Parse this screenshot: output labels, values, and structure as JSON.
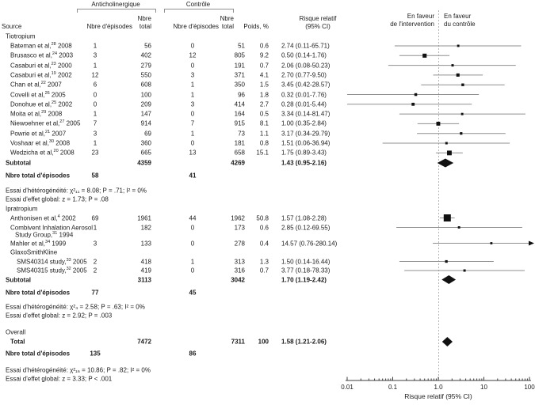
{
  "figure": {
    "source_header": "Source",
    "group_headers": [
      {
        "label": "Anticholinergique"
      },
      {
        "label": "Contrôle"
      }
    ],
    "col_headers": {
      "episodes": "Nbre d'épisodes",
      "total_line1": "Nbre",
      "total_line2": "total",
      "weight": "Poids, %",
      "rr_line1": "Risque relatif",
      "rr_line2": "(95% CI)"
    },
    "favor_left_line1": "En faveur",
    "favor_left_line2": "de l'intervention",
    "favor_right_line1": "En faveur",
    "favor_right_line2": "du contrôle",
    "colors": {
      "marker": "#111111",
      "ci_line": "#8f8f8f",
      "ref_line": "#b3b3b3",
      "axis": "#3c3c3c"
    }
  },
  "chart_data": {
    "type": "forest",
    "effect_measure": "Risque relatif (95% CI)",
    "x_scale": "log",
    "x_range": [
      0.01,
      100
    ],
    "axis": {
      "ticks": [
        "0.01",
        "0.1",
        "1.0",
        "10",
        "100"
      ],
      "tick_values": [
        0.01,
        0.1,
        1,
        10,
        100
      ],
      "title": "Risque relatif (95% CI)",
      "reference_value": 1
    },
    "groups": [
      {
        "name": "Tiotropium",
        "studies": [
          {
            "name": "Bateman et al,",
            "ref": "28",
            "year": "2008",
            "ac_events": 1,
            "ac_total": 56,
            "c_events": 0,
            "c_total": 51,
            "weight": 0.6,
            "rr": 2.74,
            "ci_low": 0.11,
            "ci_high": 65.71,
            "rr_text": "2.74 (0.11-65.71)"
          },
          {
            "name": "Brusasco et al,",
            "ref": "24",
            "year": "2003",
            "ac_events": 3,
            "ac_total": 402,
            "c_events": 12,
            "c_total": 805,
            "weight": 9.2,
            "rr": 0.5,
            "ci_low": 0.14,
            "ci_high": 1.76,
            "rr_text": "0.50 (0.14-1.76)"
          },
          {
            "name": "Casaburi et al,",
            "ref": "23",
            "year": "2000",
            "ac_events": 1,
            "ac_total": 279,
            "c_events": 0,
            "c_total": 191,
            "weight": 0.7,
            "rr": 2.06,
            "ci_low": 0.08,
            "ci_high": 50.23,
            "rr_text": "2.06 (0.08-50.23)"
          },
          {
            "name": "Casaburi et al,",
            "ref": "19",
            "year": "2002",
            "ac_events": 12,
            "ac_total": 550,
            "c_events": 3,
            "c_total": 371,
            "weight": 4.1,
            "rr": 2.7,
            "ci_low": 0.77,
            "ci_high": 9.5,
            "rr_text": "2.70 (0.77-9.50)"
          },
          {
            "name": "Chan et al,",
            "ref": "22",
            "year": "2007",
            "ac_events": 6,
            "ac_total": 608,
            "c_events": 1,
            "c_total": 350,
            "weight": 1.5,
            "rr": 3.45,
            "ci_low": 0.42,
            "ci_high": 28.57,
            "rr_text": "3.45 (0.42-28.57)"
          },
          {
            "name": "Covelli et al,",
            "ref": "26",
            "year": "2005",
            "ac_events": 0,
            "ac_total": 100,
            "c_events": 1,
            "c_total": 96,
            "weight": 1.8,
            "rr": 0.32,
            "ci_low": 0.01,
            "ci_high": 7.76,
            "rr_text": "0.32 (0.01-7.76)"
          },
          {
            "name": "Donohue et al,",
            "ref": "25",
            "year": "2002",
            "ac_events": 0,
            "ac_total": 209,
            "c_events": 3,
            "c_total": 414,
            "weight": 2.7,
            "rr": 0.28,
            "ci_low": 0.01,
            "ci_high": 5.44,
            "rr_text": "0.28 (0.01-5.44)"
          },
          {
            "name": "Moita et al,",
            "ref": "29",
            "year": "2008",
            "ac_events": 1,
            "ac_total": 147,
            "c_events": 0,
            "c_total": 164,
            "weight": 0.5,
            "rr": 3.34,
            "ci_low": 0.14,
            "ci_high": 81.47,
            "rr_text": "3.34 (0.14-81.47)"
          },
          {
            "name": "Niewoehner et al,",
            "ref": "27",
            "year": "2005",
            "ac_events": 7,
            "ac_total": 914,
            "c_events": 7,
            "c_total": 915,
            "weight": 8.1,
            "rr": 1.0,
            "ci_low": 0.35,
            "ci_high": 2.84,
            "rr_text": "1.00 (0.35-2.84)"
          },
          {
            "name": "Powrie et al,",
            "ref": "21",
            "year": "2007",
            "ac_events": 3,
            "ac_total": 69,
            "c_events": 1,
            "c_total": 73,
            "weight": 1.1,
            "rr": 3.17,
            "ci_low": 0.34,
            "ci_high": 29.79,
            "rr_text": "3.17 (0.34-29.79)"
          },
          {
            "name": "Voshaar et al,",
            "ref": "30",
            "year": "2008",
            "ac_events": 1,
            "ac_total": 360,
            "c_events": 0,
            "c_total": 181,
            "weight": 0.8,
            "rr": 1.51,
            "ci_low": 0.06,
            "ci_high": 36.94,
            "rr_text": "1.51 (0.06-36.94)"
          },
          {
            "name": "Wedzicha et al,",
            "ref": "20",
            "year": "2008",
            "ac_events": 23,
            "ac_total": 665,
            "c_events": 13,
            "c_total": 658,
            "weight": 15.1,
            "rr": 1.75,
            "ci_low": 0.89,
            "ci_high": 3.43,
            "rr_text": "1.75 (0.89-3.43)"
          }
        ],
        "subtotal": {
          "label": "Subtotal",
          "ac_total": 4359,
          "c_total": 4269,
          "rr": 1.43,
          "ci_low": 0.95,
          "ci_high": 2.16,
          "rr_text": "1.43 (0.95-2.16)"
        },
        "episodes_row": {
          "label": "Nbre total d'épisodes",
          "ac_events": 58,
          "c_events": 41
        },
        "heterogeneity": "Essai d'hétérogénéité: χ²₁₁ = 8.08; P = .71; I² = 0%",
        "overall_effect": "Essai d'effet global: z = 1.73; P = .08"
      },
      {
        "name": "Ipratropium",
        "studies": [
          {
            "name": "Anthonisen et al,",
            "ref": "4",
            "year": "2002",
            "ac_events": 69,
            "ac_total": 1961,
            "c_events": 44,
            "c_total": 1962,
            "weight": 50.8,
            "rr": 1.57,
            "ci_low": 1.08,
            "ci_high": 2.28,
            "rr_text": "1.57 (1.08-2.28)"
          },
          {
            "name": "Combivent Inhalation Aerosol",
            "name2": "Study Group,",
            "ref": "31",
            "year": "1994",
            "ac_events": 1,
            "ac_total": 182,
            "c_events": 0,
            "c_total": 173,
            "weight": 0.6,
            "rr": 2.85,
            "ci_low": 0.12,
            "ci_high": 69.55,
            "rr_text": "2.85 (0.12-69.55)"
          },
          {
            "name": "Mahler et al,",
            "ref": "34",
            "year": "1999",
            "ac_events": 3,
            "ac_total": 133,
            "c_events": 0,
            "c_total": 278,
            "weight": 0.4,
            "rr": 14.57,
            "ci_low": 0.76,
            "ci_high": 280.14,
            "rr_text": "14.57 (0.76-280.14)"
          },
          {
            "name": "GlaxoSmithKline",
            "label_only": true
          },
          {
            "name": "SMS40314 study,",
            "ref": "33",
            "year": "2005",
            "indent": true,
            "ac_events": 2,
            "ac_total": 418,
            "c_events": 1,
            "c_total": 313,
            "weight": 1.3,
            "rr": 1.5,
            "ci_low": 0.14,
            "ci_high": 16.44,
            "rr_text": "1.50 (0.14-16.44)"
          },
          {
            "name": "SMS40315 study,",
            "ref": "32",
            "year": "2005",
            "indent": true,
            "ac_events": 2,
            "ac_total": 419,
            "c_events": 0,
            "c_total": 316,
            "weight": 0.7,
            "rr": 3.77,
            "ci_low": 0.18,
            "ci_high": 78.33,
            "rr_text": "3.77 (0.18-78.33)"
          }
        ],
        "subtotal": {
          "label": "Subtotal",
          "ac_total": 3113,
          "c_total": 3042,
          "rr": 1.7,
          "ci_low": 1.19,
          "ci_high": 2.42,
          "rr_text": "1.70 (1.19-2.42)"
        },
        "episodes_row": {
          "label": "Nbre total d'épisodes",
          "ac_events": 77,
          "c_events": 45
        },
        "heterogeneity": "Essai d'hétérogénéité: χ²₄ = 2.58; P = .63; I² = 0%",
        "overall_effect": "Essai d'effet global: z = 2.92; P = .003"
      }
    ],
    "overall": {
      "name": "Overall",
      "total_label": "Total",
      "ac_total": 7472,
      "c_total": 7311,
      "weight": 100,
      "rr": 1.58,
      "ci_low": 1.21,
      "ci_high": 2.06,
      "rr_text": "1.58 (1.21-2.06)",
      "episodes_row": {
        "label": "Nbre total d'épisodes",
        "ac_events": 135,
        "c_events": 86
      },
      "heterogeneity": "Essai d'hétérogénéité: χ²₁₆ = 10.86; P = .82; I² = 0%",
      "overall_effect": "Essai d'effet global: z = 3.33; P < .001"
    }
  }
}
